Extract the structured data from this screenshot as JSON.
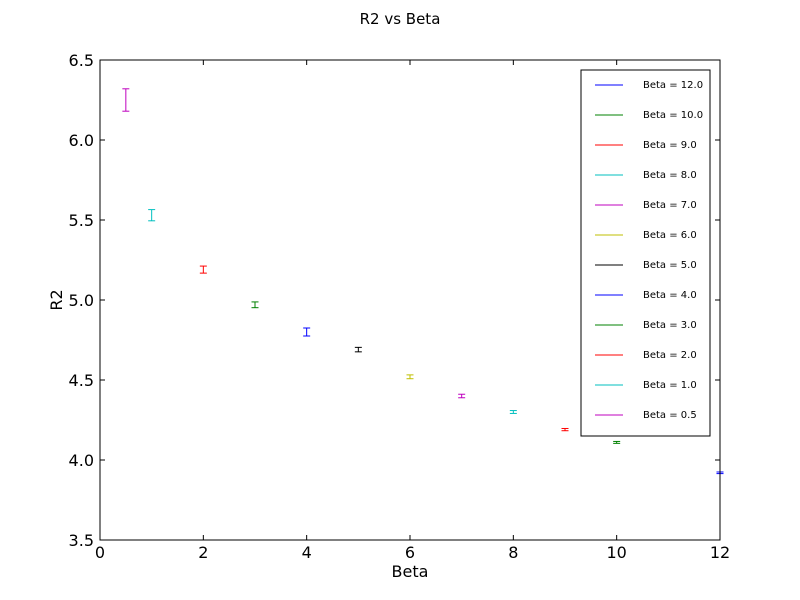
{
  "chart_data": {
    "type": "scatter",
    "title": "R2 vs Beta",
    "xlabel": "Beta",
    "ylabel": "R2",
    "xlim": [
      0,
      12
    ],
    "ylim": [
      3.5,
      6.5
    ],
    "xticks": [
      "0",
      "2",
      "4",
      "6",
      "8",
      "10",
      "12"
    ],
    "yticks": [
      "3.5",
      "4.0",
      "4.5",
      "5.0",
      "5.5",
      "6.0",
      "6.5"
    ],
    "grid": false,
    "legend_position": "top-right",
    "series": [
      {
        "name": "Beta = 12.0",
        "color": "#0000ff",
        "x": 12.0,
        "y": 3.92,
        "err": 0.005
      },
      {
        "name": "Beta = 10.0",
        "color": "#008000",
        "x": 10.0,
        "y": 4.11,
        "err": 0.006
      },
      {
        "name": "Beta = 9.0",
        "color": "#ff0000",
        "x": 9.0,
        "y": 4.19,
        "err": 0.007
      },
      {
        "name": "Beta = 8.0",
        "color": "#00bfbf",
        "x": 8.0,
        "y": 4.3,
        "err": 0.009
      },
      {
        "name": "Beta = 7.0",
        "color": "#bf00bf",
        "x": 7.0,
        "y": 4.4,
        "err": 0.011
      },
      {
        "name": "Beta = 6.0",
        "color": "#bfbf00",
        "x": 6.0,
        "y": 4.52,
        "err": 0.012
      },
      {
        "name": "Beta = 5.0",
        "color": "#000000",
        "x": 5.0,
        "y": 4.69,
        "err": 0.014
      },
      {
        "name": "Beta = 4.0",
        "color": "#0000ff",
        "x": 4.0,
        "y": 4.8,
        "err": 0.025
      },
      {
        "name": "Beta = 3.0",
        "color": "#008000",
        "x": 3.0,
        "y": 4.97,
        "err": 0.018
      },
      {
        "name": "Beta = 2.0",
        "color": "#ff0000",
        "x": 2.0,
        "y": 5.19,
        "err": 0.022
      },
      {
        "name": "Beta = 1.0",
        "color": "#00bfbf",
        "x": 1.0,
        "y": 5.53,
        "err": 0.035
      },
      {
        "name": "Beta = 0.5",
        "color": "#bf00bf",
        "x": 0.5,
        "y": 6.25,
        "err": 0.07
      }
    ]
  }
}
